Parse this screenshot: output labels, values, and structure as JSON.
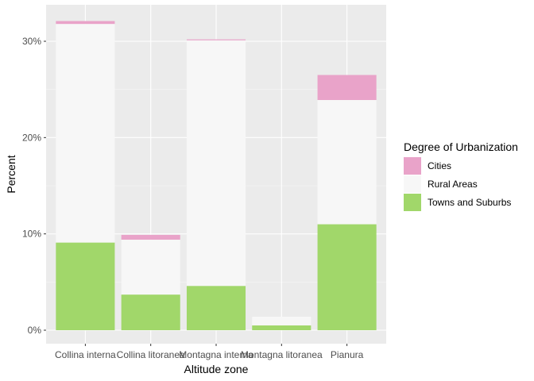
{
  "chart_data": {
    "type": "bar",
    "stacked": true,
    "categories": [
      "Collina interna",
      "Collina litoranea",
      "Montagna interna",
      "Montagna litoranea",
      "Pianura"
    ],
    "series": [
      {
        "name": "Towns and Suburbs",
        "color": "#a1d76a",
        "values": [
          9.1,
          3.7,
          4.6,
          0.5,
          11.0
        ]
      },
      {
        "name": "Rural Areas",
        "color": "#f7f7f7",
        "values": [
          22.7,
          5.7,
          25.5,
          0.9,
          12.9
        ]
      },
      {
        "name": "Cities",
        "color": "#e9a3c9",
        "values": [
          0.3,
          0.5,
          0.1,
          0.0,
          2.6
        ]
      }
    ],
    "xlabel": "Altitude zone",
    "ylabel": "Percent",
    "ylim": [
      0,
      33
    ],
    "yticks": [
      0,
      10,
      20,
      30
    ],
    "ytick_labels": [
      "0%",
      "10%",
      "20%",
      "30%"
    ],
    "grid": true,
    "panel_background": "#ebebeb",
    "legend": {
      "title": "Degree of Urbanization",
      "placement": "right",
      "entries": [
        {
          "label": "Cities",
          "color": "#e9a3c9"
        },
        {
          "label": "Rural Areas",
          "color": "#f7f7f7"
        },
        {
          "label": "Towns and Suburbs",
          "color": "#a1d76a"
        }
      ]
    }
  }
}
